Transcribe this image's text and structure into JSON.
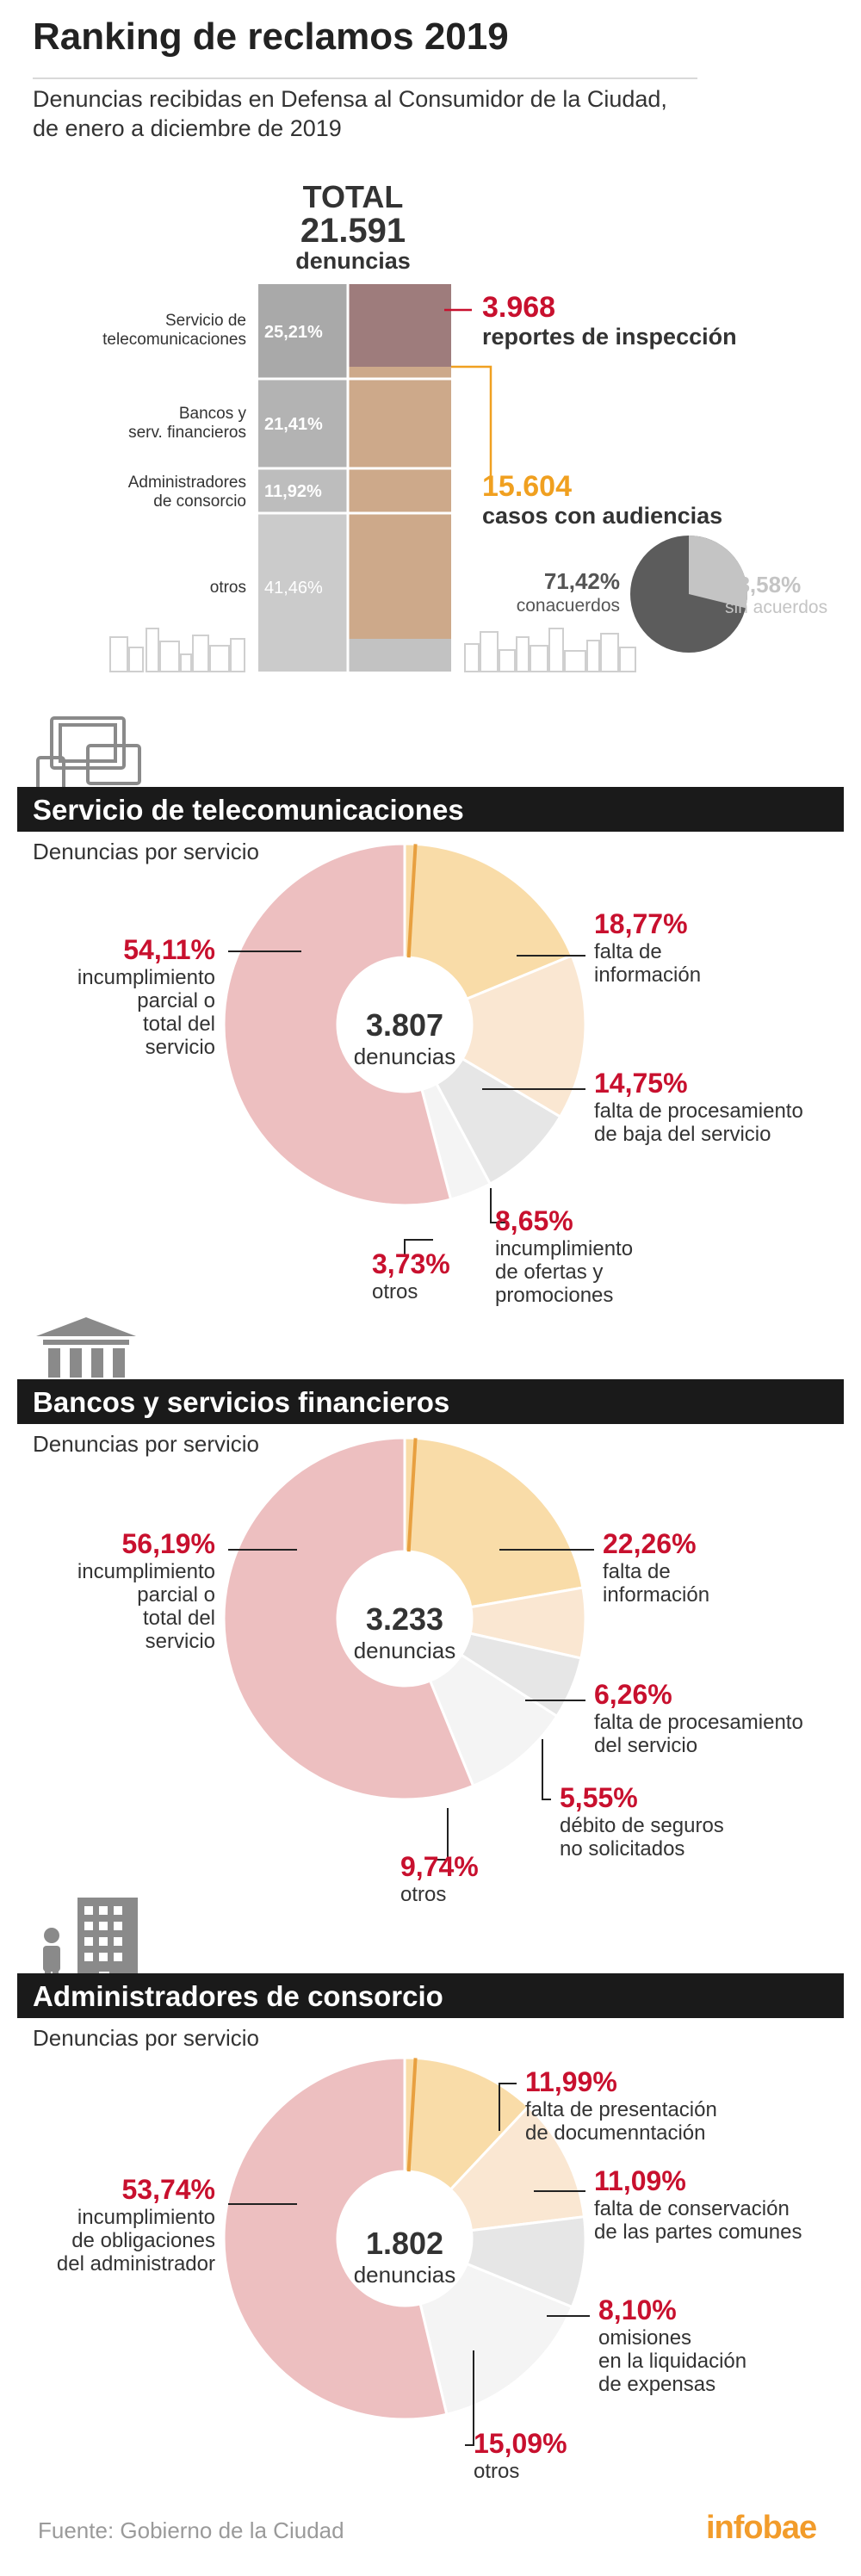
{
  "header": {
    "title": "Ranking de reclamos 2019",
    "subtitle_line1": "Denuncias recibidas en Defensa al Consumidor de la Ciudad,",
    "subtitle_line2": "de enero a diciembre de 2019"
  },
  "overview": {
    "total_label": "TOTAL",
    "total_value": "21.591",
    "total_unit": "denuncias",
    "segments": [
      {
        "label_line1": "Servicio de",
        "label_line2": "telecomunicaciones",
        "pct": "25,21%"
      },
      {
        "label_line1": "Bancos y",
        "label_line2": "serv. financieros",
        "pct": "21,41%"
      },
      {
        "label_line1": "Administradores",
        "label_line2": "de consorcio",
        "pct": "11,92%"
      },
      {
        "label_line1": "otros",
        "label_line2": "",
        "pct": "41,46%"
      }
    ],
    "inspection_value": "3.968",
    "inspection_label": "reportes de inspección",
    "hearings_value": "15.604",
    "hearings_label": "casos con audiencias",
    "agreement_pct": "71,42%",
    "agreement_label": "conacuerdos",
    "no_agreement_pct": "28,58%",
    "no_agreement_label": "sin acuerdos",
    "colors": {
      "red": "#c8102e",
      "orange": "#f0a020",
      "dark_pie": "#5c5c5c",
      "light_pie": "#c4c4c4"
    }
  },
  "chart_data": [
    {
      "type": "pie",
      "title": "Servicio de telecomunicaciones",
      "subtitle": "Denuncias por servicio",
      "center_value": "3.807",
      "center_label": "denuncias",
      "slices": [
        {
          "pct": "18,77%",
          "value": 18.77,
          "desc": [
            "falta de",
            "información"
          ],
          "color": "#f9dca8"
        },
        {
          "pct": "14,75%",
          "value": 14.75,
          "desc": [
            "falta de procesamiento",
            "de baja del servicio"
          ],
          "color": "#fae7d2"
        },
        {
          "pct": "8,65%",
          "value": 8.65,
          "desc": [
            "incumplimiento",
            "de ofertas y",
            "promociones"
          ],
          "color": "#e6e6e6"
        },
        {
          "pct": "3,73%",
          "value": 3.73,
          "desc": [
            "otros"
          ],
          "color": "#f4f4f4"
        },
        {
          "pct": "54,11%",
          "value": 54.11,
          "desc": [
            "incumplimiento",
            "parcial o",
            "total del",
            "servicio"
          ],
          "color": "#edbfc0"
        }
      ]
    },
    {
      "type": "pie",
      "title": "Bancos y servicios financieros",
      "subtitle": "Denuncias por servicio",
      "center_value": "3.233",
      "center_label": "denuncias",
      "slices": [
        {
          "pct": "22,26%",
          "value": 22.26,
          "desc": [
            "falta de",
            "información"
          ],
          "color": "#f9dca8"
        },
        {
          "pct": "6,26%",
          "value": 6.26,
          "desc": [
            "falta de procesamiento",
            "del servicio"
          ],
          "color": "#fae7d2"
        },
        {
          "pct": "5,55%",
          "value": 5.55,
          "desc": [
            "débito de seguros",
            "no solicitados"
          ],
          "color": "#e6e6e6"
        },
        {
          "pct": "9,74%",
          "value": 9.74,
          "desc": [
            "otros"
          ],
          "color": "#f4f4f4"
        },
        {
          "pct": "56,19%",
          "value": 56.19,
          "desc": [
            "incumplimiento",
            "parcial o",
            "total del",
            "servicio"
          ],
          "color": "#edbfc0"
        }
      ]
    },
    {
      "type": "pie",
      "title": "Administradores de consorcio",
      "subtitle": "Denuncias por servicio",
      "center_value": "1.802",
      "center_label": "denuncias",
      "slices": [
        {
          "pct": "11,99%",
          "value": 11.99,
          "desc": [
            "falta de presentación",
            "de documenntación"
          ],
          "color": "#f9dca8"
        },
        {
          "pct": "11,09%",
          "value": 11.09,
          "desc": [
            "falta de conservación",
            "de las partes comunes"
          ],
          "color": "#fae7d2"
        },
        {
          "pct": "8,10%",
          "value": 8.1,
          "desc": [
            "omisiones",
            "en la liquidación",
            "de expensas"
          ],
          "color": "#e6e6e6"
        },
        {
          "pct": "15,09%",
          "value": 15.09,
          "desc": [
            "otros"
          ],
          "color": "#f4f4f4"
        },
        {
          "pct": "53,74%",
          "value": 53.74,
          "desc": [
            "incumplimiento",
            "de obligaciones",
            "del administrador"
          ],
          "color": "#edbfc0"
        }
      ]
    }
  ],
  "footer": {
    "source": "Fuente: Gobierno de la Ciudad",
    "logo": "infobae"
  }
}
